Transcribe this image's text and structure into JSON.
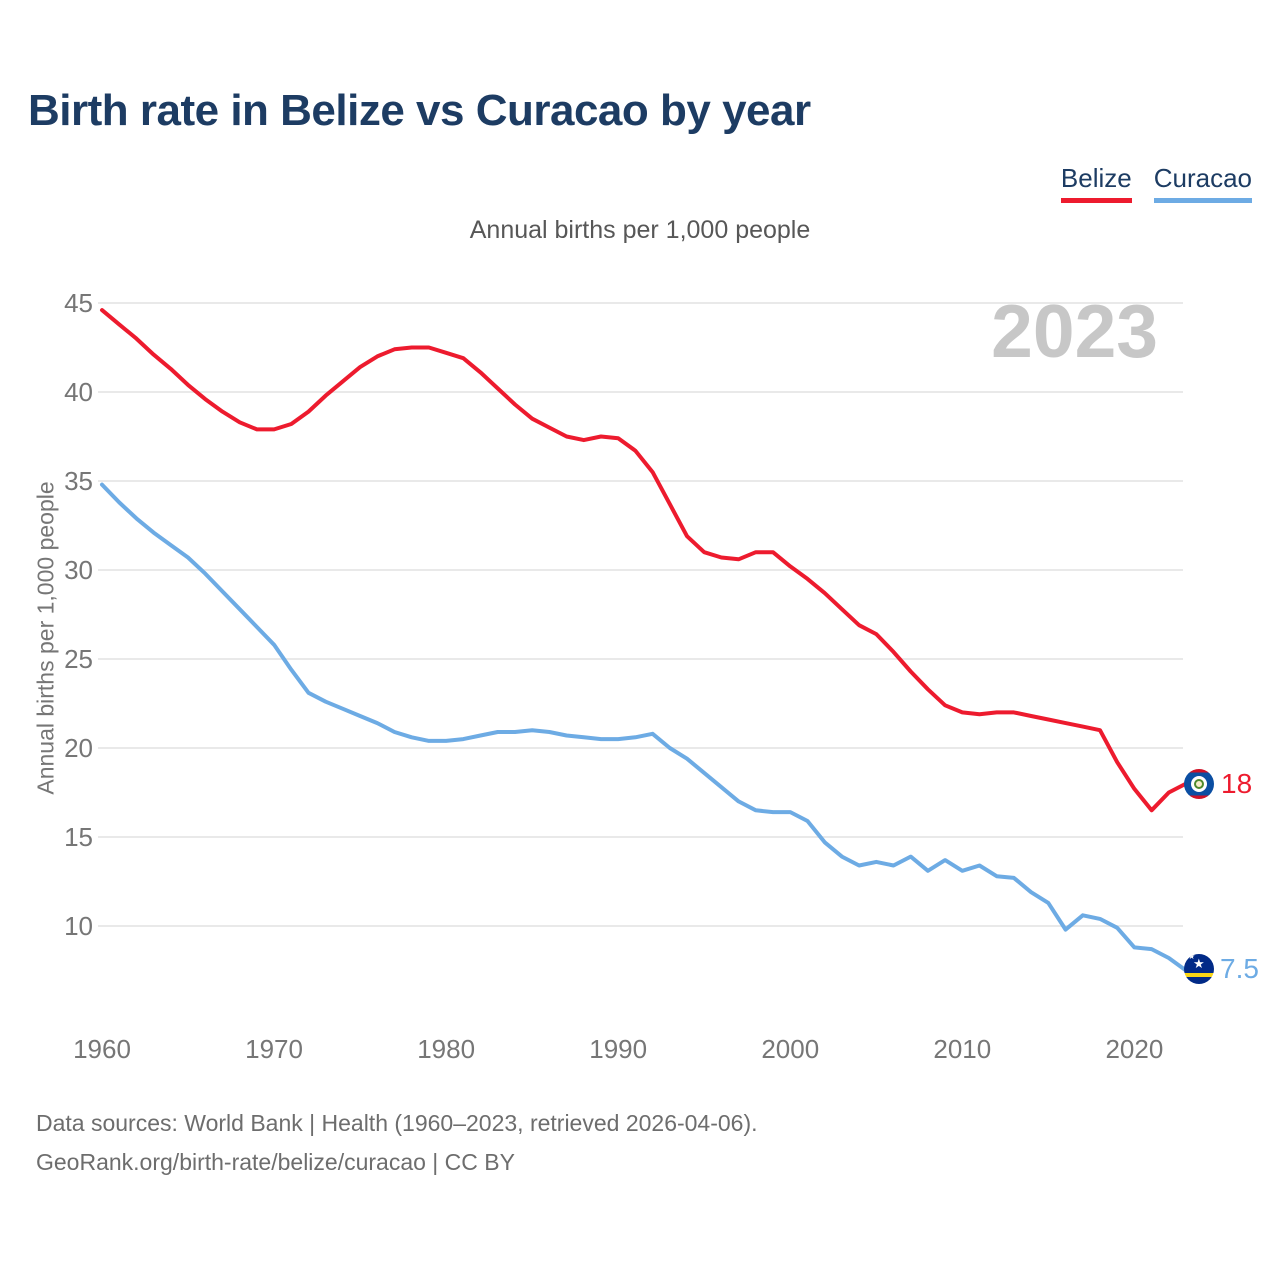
{
  "header": {
    "title": "Birth rate in Belize vs Curacao by year"
  },
  "legend": [
    {
      "label": "Belize",
      "color": "#ed1b2e"
    },
    {
      "label": "Curacao",
      "color": "#6dabe4"
    }
  ],
  "chart": {
    "subtitle": "Annual births per 1,000 people",
    "ylabel": "Annual births per 1,000 people",
    "watermark": "2023"
  },
  "end_labels": {
    "belize": {
      "value": "18",
      "icon": "belize-flag-icon"
    },
    "curacao": {
      "value": "7.5",
      "icon": "curacao-flag-icon"
    }
  },
  "footer": {
    "line1": "Data sources: World Bank | Health (1960–2023, retrieved 2026-04-06).",
    "line2": "GeoRank.org/birth-rate/belize/curacao | CC BY"
  },
  "chart_data": {
    "type": "line",
    "title": "Birth rate in Belize vs Curacao by year",
    "subtitle": "Annual births per 1,000 people",
    "xlabel": "",
    "ylabel": "Annual births per 1,000 people",
    "xlim": [
      1960,
      2023
    ],
    "ylim": [
      7,
      46
    ],
    "grid": "horizontal",
    "legend_position": "top-right",
    "x_ticks": [
      1960,
      1970,
      1980,
      1990,
      2000,
      2010,
      2020
    ],
    "y_ticks": [
      45,
      40,
      35,
      30,
      25,
      20,
      15,
      10
    ],
    "x": [
      1960,
      1961,
      1962,
      1963,
      1964,
      1965,
      1966,
      1967,
      1968,
      1969,
      1970,
      1971,
      1972,
      1973,
      1974,
      1975,
      1976,
      1977,
      1978,
      1979,
      1980,
      1981,
      1982,
      1983,
      1984,
      1985,
      1986,
      1987,
      1988,
      1989,
      1990,
      1991,
      1992,
      1993,
      1994,
      1995,
      1996,
      1997,
      1998,
      1999,
      2000,
      2001,
      2002,
      2003,
      2004,
      2005,
      2006,
      2007,
      2008,
      2009,
      2010,
      2011,
      2012,
      2013,
      2014,
      2015,
      2016,
      2017,
      2018,
      2019,
      2020,
      2021,
      2022,
      2023
    ],
    "series": [
      {
        "name": "Belize",
        "color": "#ed1b2e",
        "end_label": "18",
        "values": [
          44.6,
          43.8,
          43.0,
          42.1,
          41.3,
          40.4,
          39.6,
          38.9,
          38.3,
          37.9,
          37.9,
          38.2,
          38.9,
          39.8,
          40.6,
          41.4,
          42.0,
          42.4,
          42.5,
          42.5,
          42.2,
          41.9,
          41.1,
          40.2,
          39.3,
          38.5,
          38.0,
          37.5,
          37.3,
          37.5,
          37.4,
          36.7,
          35.5,
          33.7,
          31.9,
          31.0,
          30.7,
          30.6,
          31.0,
          31.0,
          30.2,
          29.5,
          28.7,
          27.8,
          26.9,
          26.4,
          25.4,
          24.3,
          23.3,
          22.4,
          22.0,
          21.9,
          22.0,
          22.0,
          21.8,
          21.6,
          21.4,
          21.2,
          21.0,
          19.2,
          17.7,
          16.5,
          17.5,
          18.0
        ]
      },
      {
        "name": "Curacao",
        "color": "#6dabe4",
        "end_label": "7.5",
        "values": [
          34.8,
          33.8,
          32.9,
          32.1,
          31.4,
          30.7,
          29.8,
          28.8,
          27.8,
          26.8,
          25.8,
          24.4,
          23.1,
          22.6,
          22.2,
          21.8,
          21.4,
          20.9,
          20.6,
          20.4,
          20.4,
          20.5,
          20.7,
          20.9,
          20.9,
          21.0,
          20.9,
          20.7,
          20.6,
          20.5,
          20.5,
          20.6,
          20.8,
          20.0,
          19.4,
          18.6,
          17.8,
          17.0,
          16.5,
          16.4,
          16.4,
          15.9,
          14.7,
          13.9,
          13.4,
          13.6,
          13.4,
          13.9,
          13.1,
          13.7,
          13.1,
          13.4,
          12.8,
          12.7,
          11.9,
          11.3,
          9.8,
          10.6,
          10.4,
          9.9,
          8.8,
          8.7,
          8.2,
          7.5
        ]
      }
    ]
  }
}
